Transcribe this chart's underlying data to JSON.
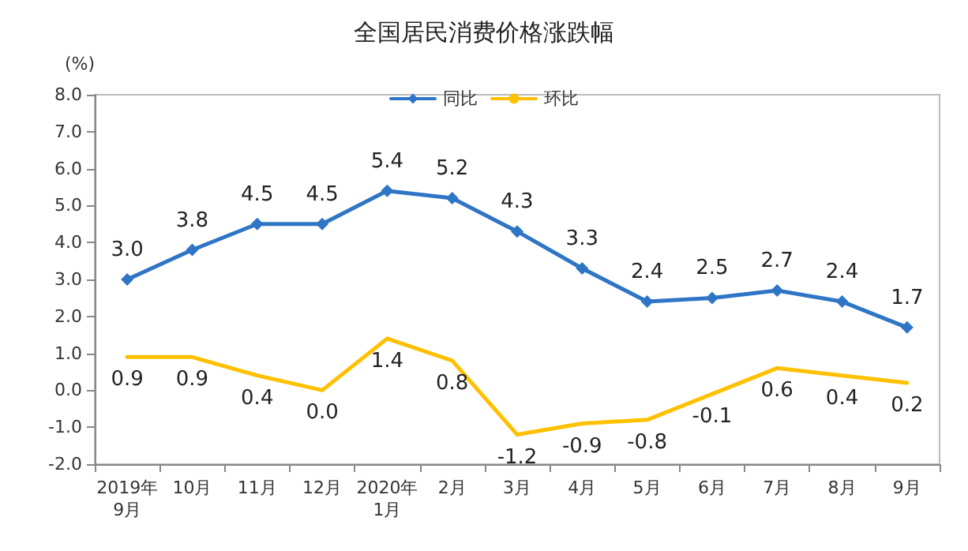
{
  "chart_data": {
    "type": "line",
    "title": "全国居民消费价格涨跌幅",
    "ylabel": "(%)",
    "categories": [
      "2019年\n9月",
      "10月",
      "11月",
      "12月",
      "2020年\n1月",
      "2月",
      "3月",
      "4月",
      "5月",
      "6月",
      "7月",
      "8月",
      "9月"
    ],
    "series": [
      {
        "name": "同比",
        "color": "#2e75c6",
        "marker": "diamond",
        "values": [
          3.0,
          3.8,
          4.5,
          4.5,
          5.4,
          5.2,
          4.3,
          3.3,
          2.4,
          2.5,
          2.7,
          2.4,
          1.7
        ],
        "value_labels": [
          "3.0",
          "3.8",
          "4.5",
          "4.5",
          "5.4",
          "5.2",
          "4.3",
          "3.3",
          "2.4",
          "2.5",
          "2.7",
          "2.4",
          "1.7"
        ]
      },
      {
        "name": "环比",
        "color": "#ffc000",
        "marker": "none",
        "values": [
          0.9,
          0.9,
          0.4,
          0.0,
          1.4,
          0.8,
          -1.2,
          -0.9,
          -0.8,
          -0.1,
          0.6,
          0.4,
          0.2
        ],
        "value_labels": [
          "0.9",
          "0.9",
          "0.4",
          "0.0",
          "1.4",
          "0.8",
          "-1.2",
          "-0.9",
          "-0.8",
          "-0.1",
          "0.6",
          "0.4",
          "0.2"
        ]
      }
    ],
    "ylim": [
      -2,
      8
    ],
    "yticks": [
      {
        "value": -2,
        "label": "-2.0"
      },
      {
        "value": -1,
        "label": "-1.0"
      },
      {
        "value": 0,
        "label": "0.0"
      },
      {
        "value": 1,
        "label": "1.0"
      },
      {
        "value": 2,
        "label": "2.0"
      },
      {
        "value": 3,
        "label": "3.0"
      },
      {
        "value": 4,
        "label": "4.0"
      },
      {
        "value": 5,
        "label": "5.0"
      },
      {
        "value": 6,
        "label": "6.0"
      },
      {
        "value": 7,
        "label": "7.0"
      },
      {
        "value": 8,
        "label": "8.0"
      }
    ],
    "legend": "top",
    "grid": false
  }
}
